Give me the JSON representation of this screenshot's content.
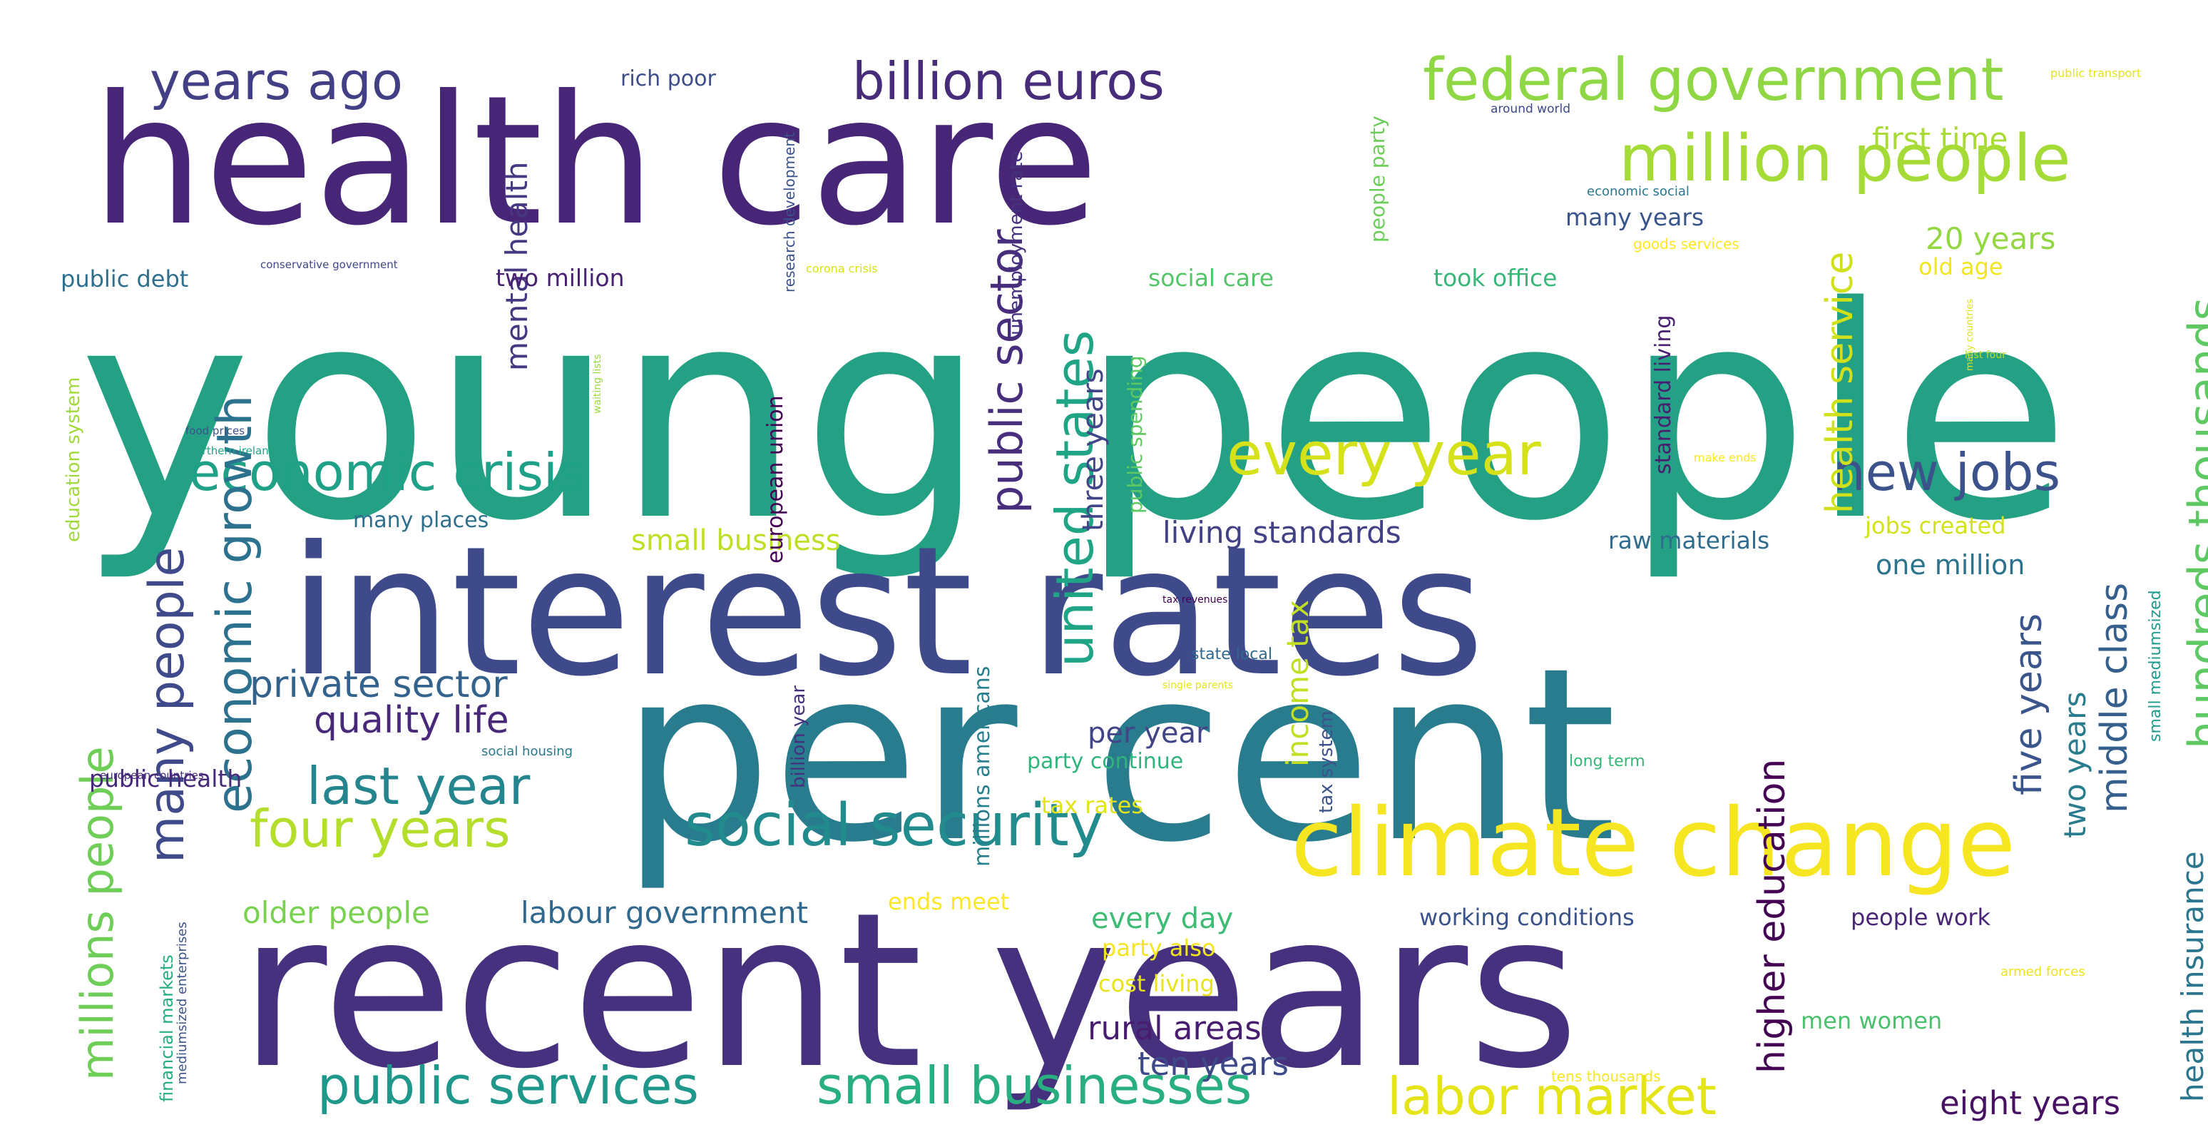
{
  "word_cloud": {
    "words": [
      {
        "text": "young people",
        "color": "#24a184"
      },
      {
        "text": "interest rates",
        "color": "#3f4a8a"
      },
      {
        "text": "per cent",
        "color": "#297b8e"
      },
      {
        "text": "recent years",
        "color": "#46317e"
      },
      {
        "text": "health care",
        "color": "#482677"
      },
      {
        "text": "climate change",
        "color": "#f6e622"
      },
      {
        "text": "social security",
        "color": "#228b8d"
      },
      {
        "text": "million people",
        "color": "#a5db36"
      },
      {
        "text": "federal government",
        "color": "#8fd744"
      },
      {
        "text": "billion euros",
        "color": "#472c7a"
      },
      {
        "text": "years ago",
        "color": "#423f85"
      },
      {
        "text": "economic crisis",
        "color": "#1fa187"
      },
      {
        "text": "every year",
        "color": "#d5e21a"
      },
      {
        "text": "new jobs",
        "color": "#3b528b"
      },
      {
        "text": "four years",
        "color": "#b4de2c"
      },
      {
        "text": "last year",
        "color": "#25858e"
      },
      {
        "text": "public services",
        "color": "#1f988b"
      },
      {
        "text": "small businesses",
        "color": "#29af7f"
      },
      {
        "text": "labor market",
        "color": "#e5e419"
      },
      {
        "text": "private sector",
        "color": "#33638d"
      },
      {
        "text": "quality life",
        "color": "#482979"
      },
      {
        "text": "economic growth",
        "color": "#2c728e"
      },
      {
        "text": "many people",
        "color": "#3e4a89"
      },
      {
        "text": "millions people",
        "color": "#6ece58"
      },
      {
        "text": "united states",
        "color": "#20a486"
      },
      {
        "text": "public sector",
        "color": "#472d7b"
      },
      {
        "text": "hundreds thousands",
        "color": "#5ec962"
      },
      {
        "text": "health service",
        "color": "#d0e11c"
      },
      {
        "text": "higher education",
        "color": "#440154"
      },
      {
        "text": "middle class",
        "color": "#35608d"
      },
      {
        "text": "health insurance",
        "color": "#2a768e"
      },
      {
        "text": "five years",
        "color": "#3a548c"
      },
      {
        "text": "two years",
        "color": "#287c8e"
      },
      {
        "text": "mental health",
        "color": "#453781"
      },
      {
        "text": "three years",
        "color": "#404588"
      },
      {
        "text": "income tax",
        "color": "#c2df23"
      },
      {
        "text": "living standards",
        "color": "#424186"
      },
      {
        "text": "small business",
        "color": "#bddf26"
      },
      {
        "text": "per year",
        "color": "#414487"
      },
      {
        "text": "every day",
        "color": "#3dbc74"
      },
      {
        "text": "rural areas",
        "color": "#481c6e"
      },
      {
        "text": "ten years",
        "color": "#3e4989"
      },
      {
        "text": "labour government",
        "color": "#31688e"
      },
      {
        "text": "older people",
        "color": "#7ad151"
      },
      {
        "text": "eight years",
        "color": "#471164"
      },
      {
        "text": "first time",
        "color": "#a8db34"
      },
      {
        "text": "20 years",
        "color": "#93d741"
      },
      {
        "text": "many years",
        "color": "#39558c"
      },
      {
        "text": "took office",
        "color": "#37b878"
      },
      {
        "text": "social care",
        "color": "#54c568"
      },
      {
        "text": "two million",
        "color": "#482173"
      },
      {
        "text": "public debt",
        "color": "#2e6f8e"
      },
      {
        "text": "rich poor",
        "color": "#3d4d8a"
      },
      {
        "text": "one million",
        "color": "#2c738e"
      },
      {
        "text": "jobs created",
        "color": "#d2e21b"
      },
      {
        "text": "raw materials",
        "color": "#2f6c8e"
      },
      {
        "text": "working conditions",
        "color": "#3a538b"
      },
      {
        "text": "people work",
        "color": "#482576"
      },
      {
        "text": "men women",
        "color": "#4ac16d"
      },
      {
        "text": "public health",
        "color": "#472a7a"
      },
      {
        "text": "many places",
        "color": "#2d708e"
      },
      {
        "text": "old age",
        "color": "#f1e51d"
      },
      {
        "text": "tax rates",
        "color": "#e2e418"
      },
      {
        "text": "party also",
        "color": "#f4e61e"
      },
      {
        "text": "cost living",
        "color": "#e8e419"
      },
      {
        "text": "ends meet",
        "color": "#fde725"
      },
      {
        "text": "party continue",
        "color": "#2fb47c"
      },
      {
        "text": "unemployment rate",
        "color": "#46327e"
      },
      {
        "text": "european union",
        "color": "#440154"
      },
      {
        "text": "public spending",
        "color": "#5ec962"
      },
      {
        "text": "people party",
        "color": "#6ccd5a"
      },
      {
        "text": "standard living",
        "color": "#481f70"
      },
      {
        "text": "education system",
        "color": "#a0da39"
      },
      {
        "text": "millions americans",
        "color": "#277f8e"
      },
      {
        "text": "billion year",
        "color": "#46307e"
      },
      {
        "text": "tax system",
        "color": "#3b528b"
      },
      {
        "text": "small mediumsized",
        "color": "#1e9b8a"
      },
      {
        "text": "research development",
        "color": "#3b518b"
      },
      {
        "text": "financial markets",
        "color": "#26ad81"
      },
      {
        "text": "mediumsized enterprises",
        "color": "#3b528b"
      },
      {
        "text": "economic social",
        "color": "#2a788e"
      },
      {
        "text": "goods services",
        "color": "#fde725"
      },
      {
        "text": "around world",
        "color": "#3e4989"
      },
      {
        "text": "public transport",
        "color": "#e5e419"
      },
      {
        "text": "corona crisis",
        "color": "#d8e219"
      },
      {
        "text": "conservative government",
        "color": "#3f4788"
      },
      {
        "text": "food prices",
        "color": "#3b528b"
      },
      {
        "text": "northern ireland",
        "color": "#20a386"
      },
      {
        "text": "waiting lists",
        "color": "#9bd93c"
      },
      {
        "text": "make ends",
        "color": "#fbe723"
      },
      {
        "text": "many countries",
        "color": "#dde318"
      },
      {
        "text": "last four",
        "color": "#b5de2b"
      },
      {
        "text": "tax revenues",
        "color": "#440154"
      },
      {
        "text": "state local",
        "color": "#31688e"
      },
      {
        "text": "single parents",
        "color": "#e7e419"
      },
      {
        "text": "social housing",
        "color": "#2a788e"
      },
      {
        "text": "long term",
        "color": "#35b779"
      },
      {
        "text": "european countries",
        "color": "#472d7b"
      },
      {
        "text": "tens thousands",
        "color": "#f8e621"
      },
      {
        "text": "armed forces",
        "color": "#ece51b"
      }
    ]
  }
}
